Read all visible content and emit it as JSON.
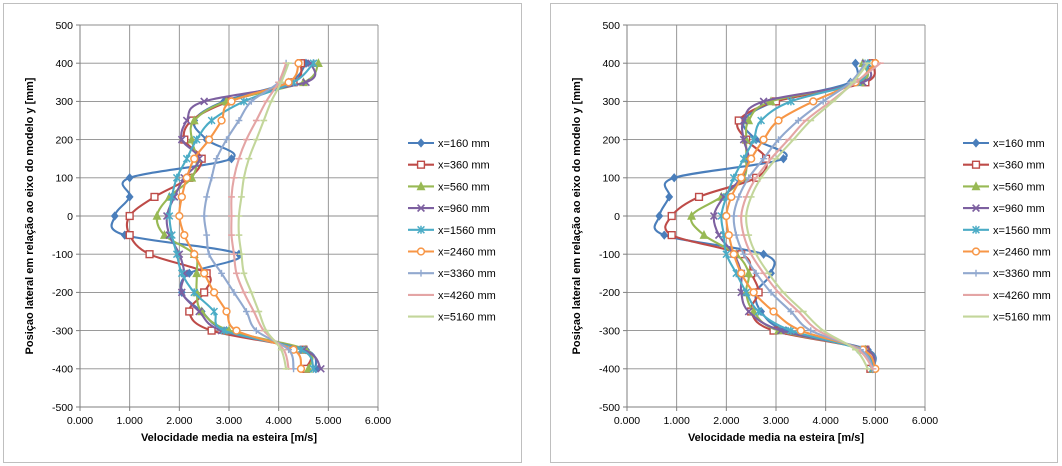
{
  "charts": [
    {
      "type": "line",
      "title": "",
      "xlabel": "Velocidade media na esteira [m/s]",
      "ylabel": "Posiçao lateral em relação ao eixo do modelo y [mm]",
      "xlim": [
        0,
        6
      ],
      "ylim": [
        -500,
        500
      ],
      "x_ticks": [
        "0.000",
        "1.000",
        "2.000",
        "3.000",
        "4.000",
        "5.000",
        "6.000"
      ],
      "y_ticks": [
        "-500",
        "-400",
        "-300",
        "-200",
        "-100",
        "0",
        "100",
        "200",
        "300",
        "400",
        "500"
      ],
      "grid": true,
      "legend": "right",
      "y": [
        -400,
        -350,
        -300,
        -250,
        -200,
        -150,
        -100,
        -50,
        0,
        50,
        100,
        150,
        200,
        250,
        300,
        350,
        400
      ],
      "series": [
        {
          "name": "x=160 mm",
          "color": "#4a7ebb",
          "marker": "diamond",
          "x": [
            4.75,
            4.55,
            2.95,
            2.45,
            2.05,
            2.2,
            3.2,
            0.9,
            0.7,
            1.0,
            1.0,
            3.05,
            2.55,
            2.3,
            2.9,
            4.2,
            4.55
          ]
        },
        {
          "name": "x=360 mm",
          "color": "#be4b48",
          "marker": "square",
          "x": [
            4.55,
            4.5,
            2.65,
            2.2,
            2.5,
            2.55,
            1.4,
            1.0,
            1.0,
            1.5,
            2.2,
            2.45,
            2.1,
            2.25,
            3.0,
            4.3,
            4.45
          ]
        },
        {
          "name": "x=560 mm",
          "color": "#98b954",
          "marker": "triangle",
          "x": [
            4.6,
            4.55,
            3.0,
            2.45,
            2.35,
            2.35,
            2.3,
            1.7,
            1.55,
            1.8,
            2.25,
            2.35,
            2.25,
            2.3,
            2.95,
            4.5,
            4.8
          ]
        },
        {
          "name": "x=960 mm",
          "color": "#7d60a0",
          "marker": "x",
          "x": [
            4.85,
            4.5,
            2.85,
            2.4,
            2.05,
            2.1,
            2.0,
            1.8,
            1.75,
            1.9,
            2.1,
            2.4,
            2.05,
            2.15,
            2.5,
            4.55,
            4.65
          ]
        },
        {
          "name": "x=1560 mm",
          "color": "#4bacc6",
          "marker": "asterisk",
          "x": [
            4.7,
            4.45,
            2.9,
            2.7,
            2.3,
            2.05,
            1.95,
            1.85,
            1.8,
            1.85,
            1.95,
            2.15,
            2.35,
            2.65,
            3.3,
            4.3,
            4.7
          ]
        },
        {
          "name": "x=2460 mm",
          "color": "#f79646",
          "marker": "circle",
          "x": [
            4.45,
            4.3,
            3.15,
            2.95,
            2.7,
            2.5,
            2.3,
            2.1,
            2.0,
            2.05,
            2.15,
            2.3,
            2.6,
            2.85,
            3.05,
            4.2,
            4.4
          ]
        },
        {
          "name": "x=3360 mm",
          "color": "#92a9cf",
          "marker": "plus",
          "x": [
            4.3,
            4.2,
            3.55,
            3.35,
            3.1,
            2.85,
            2.6,
            2.55,
            2.5,
            2.55,
            2.65,
            2.75,
            2.95,
            3.2,
            3.45,
            4.0,
            4.15
          ]
        },
        {
          "name": "x=4260 mm",
          "color": "#e4a5a5",
          "marker": "dash",
          "x": [
            4.2,
            4.1,
            3.7,
            3.5,
            3.3,
            3.15,
            3.1,
            3.05,
            3.05,
            3.05,
            3.1,
            3.2,
            3.35,
            3.55,
            3.75,
            4.0,
            4.15
          ]
        },
        {
          "name": "x=5160 mm",
          "color": "#c3d69b",
          "marker": "dash",
          "x": [
            4.15,
            4.05,
            3.75,
            3.6,
            3.45,
            3.3,
            3.25,
            3.2,
            3.2,
            3.25,
            3.3,
            3.4,
            3.55,
            3.7,
            3.85,
            4.05,
            4.2
          ]
        }
      ]
    },
    {
      "type": "line",
      "title": "",
      "xlabel": "Velocidade  media na esteira [m/s]",
      "ylabel": "Posiçao lateral em relação ao eixo do modelo y [mm]",
      "xlim": [
        0,
        6
      ],
      "ylim": [
        -500,
        500
      ],
      "x_ticks": [
        "0.000",
        "1.000",
        "2.000",
        "3.000",
        "4.000",
        "5.000",
        "6.000"
      ],
      "y_ticks": [
        "-500",
        "-400",
        "-300",
        "-200",
        "-100",
        "0",
        "100",
        "200",
        "300",
        "400",
        "500"
      ],
      "grid": true,
      "legend": "right",
      "y": [
        -400,
        -350,
        -300,
        -250,
        -200,
        -150,
        -100,
        -50,
        0,
        50,
        100,
        150,
        200,
        250,
        300,
        350,
        400
      ],
      "series": [
        {
          "name": "x=160 mm",
          "color": "#4a7ebb",
          "marker": "diamond",
          "x": [
            4.95,
            4.85,
            3.2,
            2.7,
            2.6,
            2.9,
            2.75,
            0.75,
            0.65,
            0.85,
            0.95,
            3.15,
            2.6,
            2.35,
            3.0,
            4.5,
            4.6
          ]
        },
        {
          "name": "x=360 mm",
          "color": "#be4b48",
          "marker": "square",
          "x": [
            4.9,
            4.8,
            2.95,
            2.5,
            2.65,
            2.5,
            2.3,
            0.9,
            0.9,
            1.45,
            2.6,
            2.8,
            2.4,
            2.25,
            3.0,
            4.8,
            4.95
          ]
        },
        {
          "name": "x=560 mm",
          "color": "#98b954",
          "marker": "triangle",
          "x": [
            4.95,
            4.8,
            3.05,
            2.55,
            2.4,
            2.45,
            2.2,
            1.55,
            1.3,
            1.9,
            2.35,
            2.4,
            2.4,
            2.45,
            2.9,
            4.7,
            4.75
          ]
        },
        {
          "name": "x=960 mm",
          "color": "#7d60a0",
          "marker": "x",
          "x": [
            4.95,
            4.8,
            3.1,
            2.45,
            2.3,
            2.3,
            2.15,
            1.85,
            1.75,
            1.95,
            2.3,
            2.45,
            2.35,
            2.35,
            2.75,
            4.75,
            4.8
          ]
        },
        {
          "name": "x=1560 mm",
          "color": "#4bacc6",
          "marker": "asterisk",
          "x": [
            4.95,
            4.7,
            3.3,
            2.65,
            2.4,
            2.2,
            2.0,
            1.95,
            1.9,
            2.0,
            2.15,
            2.35,
            2.55,
            2.7,
            3.3,
            4.65,
            4.85
          ]
        },
        {
          "name": "x=2460 mm",
          "color": "#f79646",
          "marker": "circle",
          "x": [
            5.0,
            4.75,
            3.5,
            2.95,
            2.55,
            2.3,
            2.15,
            2.05,
            2.0,
            2.1,
            2.3,
            2.5,
            2.75,
            3.05,
            3.75,
            4.6,
            5.0
          ]
        },
        {
          "name": "x=3360 mm",
          "color": "#92a9cf",
          "marker": "plus",
          "x": [
            4.95,
            4.7,
            3.7,
            3.3,
            2.9,
            2.6,
            2.35,
            2.2,
            2.15,
            2.25,
            2.45,
            2.75,
            3.05,
            3.45,
            3.95,
            4.5,
            4.8
          ]
        },
        {
          "name": "x=4260 mm",
          "color": "#e4a5a5",
          "marker": "dash",
          "x": [
            4.95,
            4.65,
            3.85,
            3.45,
            3.05,
            2.75,
            2.5,
            2.35,
            2.3,
            2.4,
            2.6,
            2.9,
            3.25,
            3.6,
            4.1,
            4.6,
            5.1
          ]
        },
        {
          "name": "x=5160 mm",
          "color": "#c3d69b",
          "marker": "dash",
          "x": [
            4.85,
            4.6,
            3.95,
            3.55,
            3.15,
            2.85,
            2.6,
            2.45,
            2.4,
            2.5,
            2.7,
            3.0,
            3.35,
            3.7,
            4.15,
            4.55,
            4.85
          ]
        }
      ]
    }
  ]
}
